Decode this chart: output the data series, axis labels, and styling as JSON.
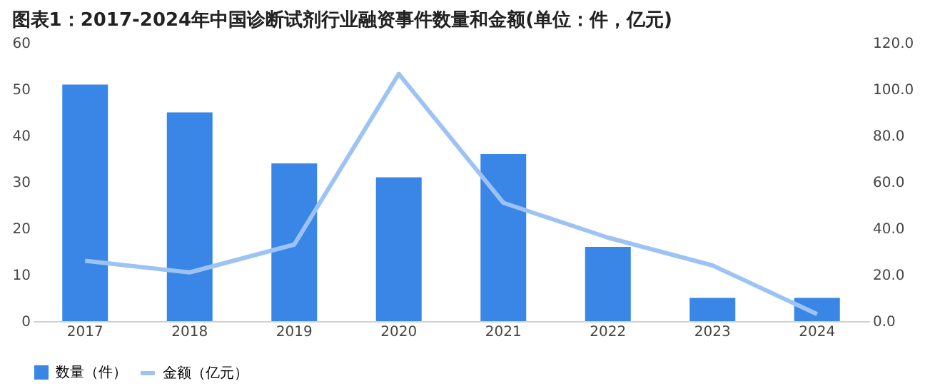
{
  "chart_data": {
    "type": "bar",
    "title": "图表1：2017-2024年中国诊断试剂行业融资事件数量和金额(单位：件，亿元)",
    "categories": [
      "2017",
      "2018",
      "2019",
      "2020",
      "2021",
      "2022",
      "2023",
      "2024"
    ],
    "series": [
      {
        "name": "数量（件）",
        "color": "#3a86e6",
        "values": [
          51,
          45,
          34,
          31,
          36,
          16,
          5,
          5
        ]
      },
      {
        "name": "金额（亿元）",
        "type": "line",
        "axis": "y2",
        "color": "#9dc3f5",
        "values": [
          26,
          21,
          33,
          106.6,
          51,
          36,
          24,
          3
        ]
      }
    ],
    "ylim": [
      0,
      60
    ],
    "yticks": [
      0,
      10,
      20,
      30,
      40,
      50,
      60
    ],
    "y2lim": [
      0,
      120
    ],
    "y2ticks": [
      {
        "value": 0,
        "label": "0.0"
      },
      {
        "value": 20,
        "label": "20.0"
      },
      {
        "value": 40,
        "label": "40.0"
      },
      {
        "value": 60,
        "label": "60.0"
      },
      {
        "value": 80,
        "label": "80.0"
      },
      {
        "value": 100,
        "label": "100.0"
      },
      {
        "value": 120,
        "label": "120.0"
      }
    ],
    "legend": "bottom",
    "grid": false
  }
}
